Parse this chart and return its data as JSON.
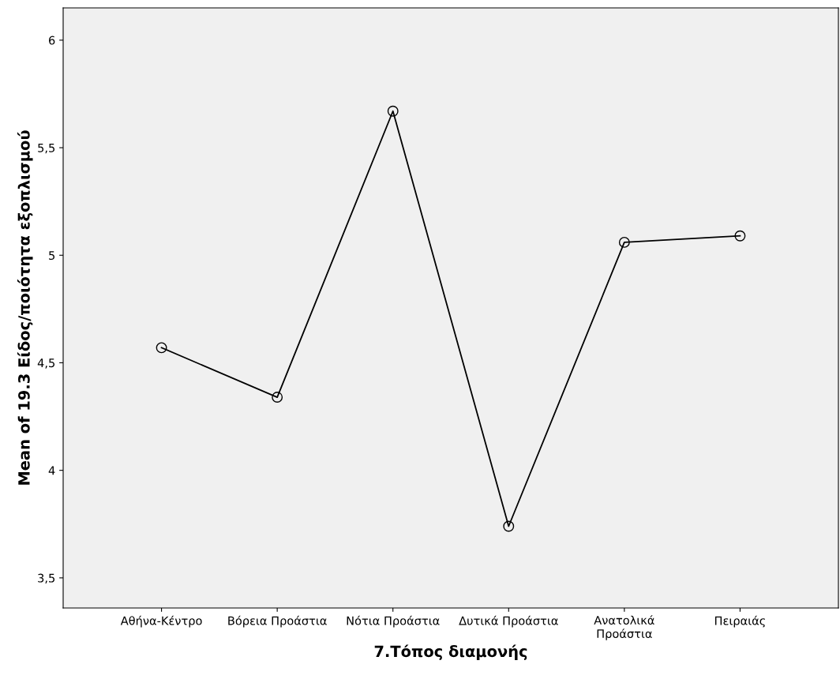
{
  "chart_data": {
    "type": "line",
    "xlabel": "7.Τόπος διαμονής",
    "ylabel": "Mean of 19.3 Είδος/ποιότητα εξοπλισμού",
    "categories": [
      "Αθήνα-Κέντρο",
      "Βόρεια Προάστια",
      "Νότια Προάστια",
      "Δυτικά Προάστια",
      "Ανατολικά\nΠροάστια",
      "Πειραιάς"
    ],
    "series": [
      {
        "color": "#000000",
        "values": [
          4.57,
          4.34,
          5.67,
          3.74,
          5.06,
          5.09
        ]
      }
    ],
    "ylim": [
      3.36,
      6.15
    ],
    "yticks": [
      {
        "value": 3.5,
        "label": "3,5"
      },
      {
        "value": 4,
        "label": "4"
      },
      {
        "value": 4.5,
        "label": "4,5"
      },
      {
        "value": 5,
        "label": "5"
      },
      {
        "value": 5.5,
        "label": "5,5"
      },
      {
        "value": 6,
        "label": "6"
      }
    ],
    "marker": "circle",
    "line_style": "solid",
    "grid": false,
    "legend": false
  }
}
